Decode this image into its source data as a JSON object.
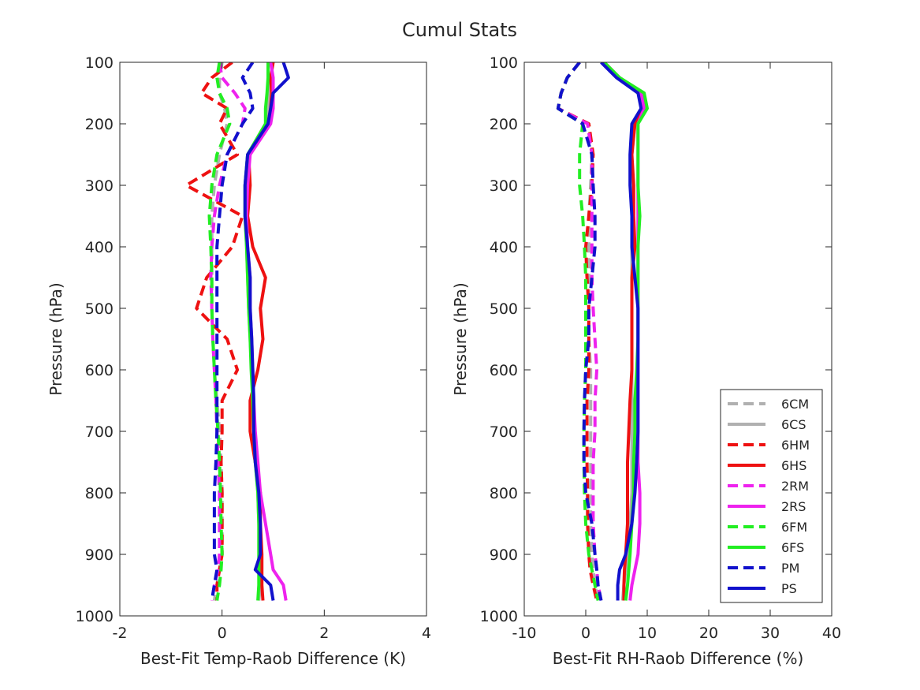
{
  "figure": {
    "title": "Cumul Stats"
  },
  "colors": {
    "6CM": "#b0b0b0",
    "6CS": "#b0b0b0",
    "6HM": "#ee1111",
    "6HS": "#ee1111",
    "2RM": "#ee22ee",
    "2RS": "#ee22ee",
    "6FM": "#22ee22",
    "6FS": "#22ee22",
    "PM": "#1111cc",
    "PS": "#1111cc"
  },
  "legend": {
    "location": "bottom-right of right panel",
    "entries": [
      {
        "name": "6CM",
        "style": "dashed"
      },
      {
        "name": "6CS",
        "style": "solid"
      },
      {
        "name": "6HM",
        "style": "dashed"
      },
      {
        "name": "6HS",
        "style": "solid"
      },
      {
        "name": "2RM",
        "style": "dashed"
      },
      {
        "name": "2RS",
        "style": "solid"
      },
      {
        "name": "6FM",
        "style": "dashed"
      },
      {
        "name": "6FS",
        "style": "solid"
      },
      {
        "name": "PM",
        "style": "dashed"
      },
      {
        "name": "PS",
        "style": "solid"
      }
    ]
  },
  "chart_data": [
    {
      "type": "line",
      "title": "",
      "xlabel": "Best-Fit Temp-Raob Difference (K)",
      "ylabel": "Pressure (hPa)",
      "xlim": [
        -2,
        4
      ],
      "ylim": [
        100,
        1000
      ],
      "y_reversed": true,
      "grid": false,
      "xticks": [
        "-2",
        "0",
        "2",
        "4"
      ],
      "yticks": [
        "100",
        "200",
        "300",
        "400",
        "500",
        "600",
        "700",
        "800",
        "900",
        "1000"
      ],
      "y": [
        100,
        125,
        150,
        175,
        200,
        250,
        300,
        350,
        400,
        450,
        500,
        550,
        600,
        650,
        700,
        750,
        800,
        850,
        900,
        925,
        950,
        975
      ],
      "series": [
        {
          "name": "6CM",
          "style": "dashed",
          "values": [
            0.0,
            -0.05,
            -0.05,
            0.05,
            0.1,
            -0.05,
            -0.15,
            -0.2,
            -0.2,
            -0.2,
            -0.2,
            -0.18,
            -0.15,
            -0.1,
            -0.05,
            -0.02,
            0.0,
            0.0,
            0.0,
            -0.05,
            -0.1,
            -0.15
          ]
        },
        {
          "name": "6CS",
          "style": "solid",
          "values": [
            0.9,
            0.9,
            0.92,
            0.9,
            0.85,
            0.5,
            0.45,
            0.45,
            0.48,
            0.5,
            0.52,
            0.55,
            0.58,
            0.6,
            0.62,
            0.65,
            0.7,
            0.72,
            0.75,
            0.75,
            0.75,
            0.72
          ]
        },
        {
          "name": "6HM",
          "style": "dashed",
          "values": [
            0.2,
            -0.2,
            -0.4,
            0.1,
            -0.05,
            0.3,
            -0.7,
            0.4,
            0.2,
            -0.3,
            -0.5,
            0.1,
            0.3,
            0.0,
            0.0,
            -0.02,
            0.0,
            0.0,
            0.0,
            -0.05,
            -0.1,
            -0.1
          ]
        },
        {
          "name": "6HS",
          "style": "solid",
          "values": [
            1.0,
            0.95,
            0.97,
            0.95,
            0.9,
            0.52,
            0.55,
            0.5,
            0.6,
            0.85,
            0.75,
            0.8,
            0.7,
            0.55,
            0.55,
            0.65,
            0.75,
            0.75,
            0.78,
            0.78,
            0.78,
            0.8
          ]
        },
        {
          "name": "2RM",
          "style": "dashed",
          "values": [
            -0.05,
            0.0,
            0.25,
            0.45,
            0.4,
            0.1,
            -0.05,
            -0.15,
            -0.2,
            -0.22,
            -0.2,
            -0.18,
            -0.15,
            -0.12,
            -0.1,
            -0.08,
            -0.05,
            -0.05,
            -0.05,
            -0.08,
            -0.15,
            -0.2
          ]
        },
        {
          "name": "2RS",
          "style": "solid",
          "values": [
            0.95,
            1.0,
            1.0,
            1.0,
            0.95,
            0.55,
            0.5,
            0.48,
            0.5,
            0.55,
            0.55,
            0.58,
            0.6,
            0.62,
            0.65,
            0.7,
            0.75,
            0.85,
            0.95,
            1.0,
            1.2,
            1.25
          ]
        },
        {
          "name": "6FM",
          "style": "dashed",
          "values": [
            -0.05,
            -0.1,
            -0.05,
            0.1,
            0.15,
            -0.1,
            -0.2,
            -0.25,
            -0.22,
            -0.2,
            -0.2,
            -0.18,
            -0.15,
            -0.12,
            -0.08,
            -0.05,
            -0.03,
            -0.02,
            0.0,
            -0.02,
            -0.05,
            -0.1
          ]
        },
        {
          "name": "6FS",
          "style": "solid",
          "values": [
            0.9,
            0.9,
            0.88,
            0.85,
            0.85,
            0.5,
            0.45,
            0.45,
            0.48,
            0.5,
            0.52,
            0.55,
            0.57,
            0.6,
            0.62,
            0.65,
            0.7,
            0.72,
            0.72,
            0.72,
            0.72,
            0.7
          ]
        },
        {
          "name": "PM",
          "style": "dashed",
          "values": [
            0.6,
            0.4,
            0.55,
            0.6,
            0.4,
            0.1,
            0.0,
            -0.05,
            -0.1,
            -0.1,
            -0.1,
            -0.1,
            -0.1,
            -0.1,
            -0.1,
            -0.12,
            -0.15,
            -0.15,
            -0.15,
            -0.1,
            -0.15,
            -0.2
          ]
        },
        {
          "name": "PS",
          "style": "solid",
          "values": [
            1.2,
            1.3,
            1.0,
            0.95,
            0.9,
            0.5,
            0.45,
            0.45,
            0.5,
            0.55,
            0.55,
            0.58,
            0.6,
            0.62,
            0.62,
            0.65,
            0.72,
            0.75,
            0.75,
            0.65,
            0.95,
            1.0
          ]
        }
      ]
    },
    {
      "type": "line",
      "title": "",
      "xlabel": "Best-Fit RH-Raob Difference (%)",
      "ylabel": "Pressure (hPa)",
      "xlim": [
        -10,
        40
      ],
      "ylim": [
        100,
        1000
      ],
      "y_reversed": true,
      "grid": false,
      "xticks": [
        "-10",
        "0",
        "10",
        "20",
        "30",
        "40"
      ],
      "yticks": [
        "100",
        "200",
        "300",
        "400",
        "500",
        "600",
        "700",
        "800",
        "900",
        "1000"
      ],
      "y": [
        100,
        125,
        150,
        175,
        200,
        250,
        300,
        350,
        400,
        450,
        500,
        550,
        600,
        650,
        700,
        750,
        800,
        850,
        900,
        925,
        950,
        975
      ],
      "series": [
        {
          "name": "6CM",
          "style": "dashed",
          "values": [
            -1.0,
            -3.0,
            -4.0,
            -4.5,
            0.5,
            1.0,
            0.8,
            0.5,
            0.5,
            0.5,
            0.5,
            0.5,
            0.8,
            0.8,
            0.8,
            0.8,
            0.8,
            0.8,
            1.0,
            1.2,
            1.5,
            2.0
          ]
        },
        {
          "name": "6CS",
          "style": "solid",
          "values": [
            3.0,
            5.5,
            9.0,
            9.5,
            8.0,
            7.5,
            7.5,
            7.5,
            7.5,
            7.5,
            7.5,
            7.5,
            7.5,
            7.5,
            7.5,
            7.5,
            7.5,
            7.2,
            7.0,
            6.5,
            6.2,
            6.0
          ]
        },
        {
          "name": "6HM",
          "style": "dashed",
          "values": [
            -1.0,
            -3.0,
            -4.0,
            -4.5,
            0.5,
            1.2,
            1.0,
            0.5,
            0.0,
            0.2,
            0.5,
            0.5,
            0.5,
            0.2,
            0.2,
            0.2,
            0.3,
            0.3,
            0.5,
            0.7,
            1.2,
            1.8
          ]
        },
        {
          "name": "6HS",
          "style": "solid",
          "values": [
            3.0,
            5.5,
            9.0,
            9.5,
            8.0,
            7.5,
            7.8,
            7.8,
            8.0,
            7.5,
            7.5,
            7.5,
            7.5,
            7.2,
            7.0,
            6.8,
            6.8,
            6.8,
            6.5,
            6.3,
            6.2,
            6.2
          ]
        },
        {
          "name": "2RM",
          "style": "dashed",
          "values": [
            -1.0,
            -3.0,
            -4.0,
            -4.5,
            0.3,
            1.0,
            1.0,
            1.0,
            1.0,
            1.0,
            1.2,
            1.5,
            1.8,
            1.5,
            1.5,
            1.2,
            1.2,
            1.2,
            1.5,
            1.8,
            2.0,
            2.5
          ]
        },
        {
          "name": "2RS",
          "style": "solid",
          "values": [
            3.0,
            5.5,
            9.0,
            9.5,
            8.5,
            8.5,
            8.5,
            8.5,
            8.5,
            8.5,
            8.5,
            8.5,
            8.5,
            8.5,
            8.5,
            8.5,
            8.8,
            8.8,
            8.5,
            8.0,
            7.5,
            7.2
          ]
        },
        {
          "name": "6FM",
          "style": "dashed",
          "values": [
            -1.0,
            -3.0,
            -4.0,
            -4.5,
            -0.5,
            -1.0,
            -1.0,
            -0.5,
            -0.2,
            0.0,
            0.0,
            0.0,
            0.0,
            -0.2,
            -0.3,
            -0.3,
            -0.2,
            0.0,
            0.5,
            1.0,
            1.5,
            2.0
          ]
        },
        {
          "name": "6FS",
          "style": "solid",
          "values": [
            3.0,
            5.5,
            9.5,
            10.0,
            8.5,
            8.5,
            8.5,
            8.8,
            8.5,
            8.5,
            8.5,
            8.5,
            8.3,
            8.0,
            8.0,
            7.8,
            7.8,
            7.5,
            7.2,
            7.0,
            6.8,
            6.5
          ]
        },
        {
          "name": "PM",
          "style": "dashed",
          "values": [
            -1.0,
            -3.0,
            -4.0,
            -4.5,
            -0.5,
            1.0,
            1.2,
            1.5,
            1.5,
            1.0,
            0.5,
            0.5,
            0.0,
            -0.2,
            -0.3,
            -0.3,
            0.0,
            1.0,
            1.5,
            1.8,
            2.0,
            2.5
          ]
        },
        {
          "name": "PS",
          "style": "solid",
          "values": [
            2.5,
            5.0,
            8.5,
            9.0,
            7.5,
            7.2,
            7.2,
            7.5,
            7.5,
            8.0,
            8.5,
            8.5,
            8.5,
            8.5,
            8.5,
            8.3,
            8.0,
            7.5,
            6.5,
            5.5,
            5.2,
            5.2
          ]
        }
      ]
    }
  ]
}
